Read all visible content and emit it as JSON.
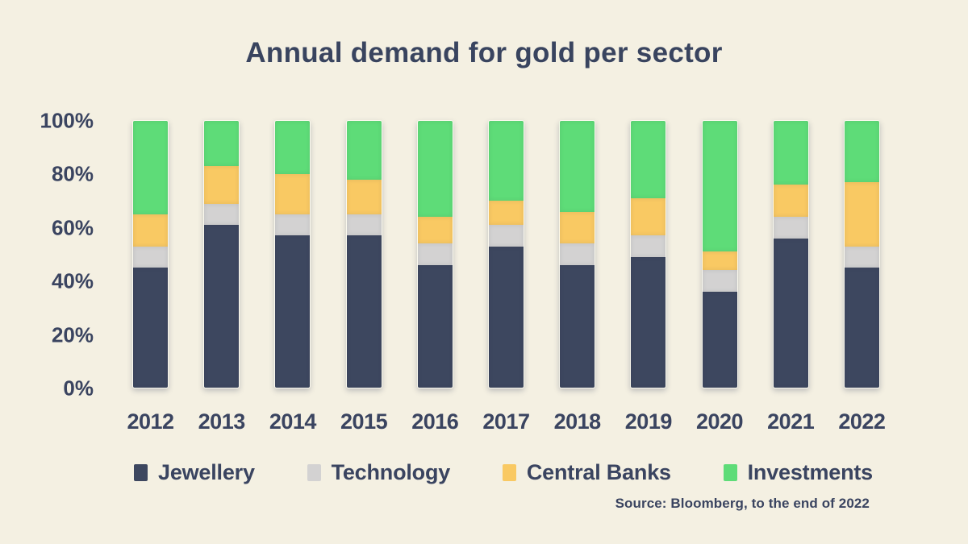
{
  "title": "Annual demand for gold per sector",
  "source_note": "Source: Bloomberg, to the end of 2022",
  "colors": {
    "background": "#F4F0E2",
    "text": "#3A4460",
    "jewellery": "#3D475F",
    "technology": "#D3D2D2",
    "central_banks": "#F9C963",
    "investments": "#5EDC78"
  },
  "y_axis": {
    "ticks": [
      "100%",
      "80%",
      "60%",
      "40%",
      "20%",
      "0%"
    ]
  },
  "chart_data": {
    "type": "bar",
    "stacked": true,
    "units": "percent of total annual demand",
    "title": "Annual demand for gold per sector",
    "categories": [
      "2012",
      "2013",
      "2014",
      "2015",
      "2016",
      "2017",
      "2018",
      "2019",
      "2020",
      "2021",
      "2022"
    ],
    "series": [
      {
        "name": "Jewellery",
        "color": "#3D475F",
        "values": [
          45,
          61,
          57,
          57,
          46,
          53,
          46,
          49,
          36,
          56,
          45
        ]
      },
      {
        "name": "Technology",
        "color": "#D3D2D2",
        "values": [
          8,
          8,
          8,
          8,
          8,
          8,
          8,
          8,
          8,
          8,
          8
        ]
      },
      {
        "name": "Central Banks",
        "color": "#F9C963",
        "values": [
          12,
          14,
          15,
          13,
          10,
          9,
          12,
          14,
          7,
          12,
          24
        ]
      },
      {
        "name": "Investments",
        "color": "#5EDC78",
        "values": [
          35,
          17,
          20,
          22,
          36,
          30,
          34,
          29,
          49,
          24,
          23
        ]
      }
    ],
    "ylim": [
      0,
      100
    ],
    "grid": false,
    "legend_position": "bottom"
  }
}
